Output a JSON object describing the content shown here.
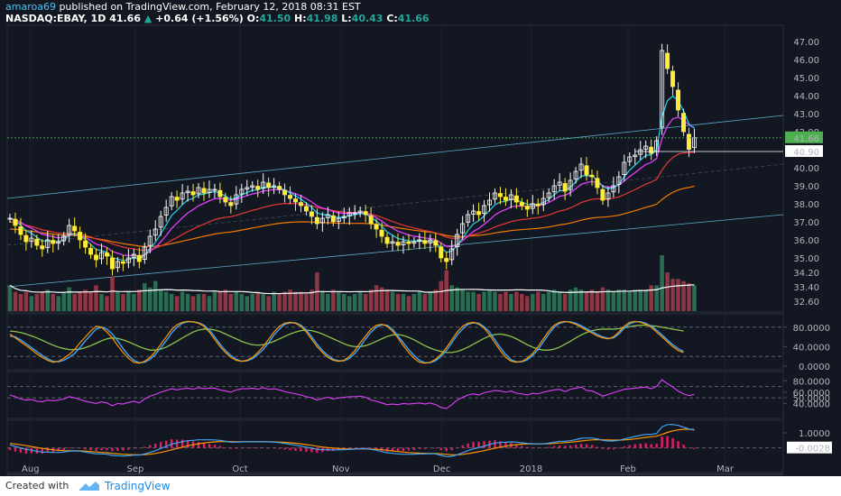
{
  "header": {
    "author": "amaroa69",
    "published_text": "published on TradingView.com, February 12, 2018 08:31 EST",
    "symbol": "NASDAQ:EBAY, 1D",
    "last": "41.66",
    "up_arrow": "▲",
    "change": "+0.64 (+1.56%)",
    "o_label": "O:",
    "o": "41.50",
    "h_label": "H:",
    "h": "41.98",
    "l_label": "L:",
    "l": "40.43",
    "c_label": "C:",
    "c": "41.66"
  },
  "footer": {
    "created_with": "Created with",
    "brand": "TradingView"
  },
  "colors": {
    "bg": "#131722",
    "up": "#26a69a",
    "down": "#ef5350",
    "candle_up": "#ffffff",
    "candle_down": "#ffeb3b",
    "ema_fast": "#26c6da",
    "ema_mid": "#e040fb",
    "ema_slow": "#e53935",
    "sma_long": "#f57c00",
    "volume_ma": "#ffffff",
    "stoch_k": "#ff9800",
    "stoch_d": "#42a5f5",
    "stoch_slow": "#8bc34a",
    "rsi": "#e040fb",
    "macd": "#42a5f5",
    "signal": "#ff9800",
    "hist": "#e91e63",
    "channel": "#5fa8c8",
    "price_tag": "#4caf50"
  },
  "chart_data": [
    {
      "type": "candlestick",
      "y_ticks": [
        "47.00",
        "46.00",
        "45.00",
        "44.00",
        "43.00",
        "42.00",
        "41.66",
        "40.90",
        "40.00",
        "39.00",
        "38.00",
        "37.00",
        "36.00",
        "35.00",
        "34.20",
        "33.40",
        "32.60"
      ],
      "ylim": [
        32.2,
        47.6
      ],
      "x_ticks": [
        "Aug",
        "Sep",
        "Oct",
        "Nov",
        "Dec",
        "2018",
        "Feb",
        "Mar"
      ],
      "last_price_label": "41.66",
      "marked_level": "40.90",
      "closes": [
        37.2,
        36.8,
        36.3,
        35.9,
        36.1,
        35.7,
        35.5,
        36.0,
        35.8,
        35.9,
        36.2,
        36.8,
        36.5,
        36.0,
        35.6,
        35.2,
        34.9,
        35.3,
        35.1,
        34.4,
        34.8,
        34.7,
        35.0,
        35.2,
        34.8,
        35.6,
        36.2,
        36.6,
        37.3,
        37.8,
        38.4,
        38.2,
        38.6,
        38.7,
        38.5,
        38.9,
        38.6,
        38.8,
        38.8,
        38.4,
        38.1,
        37.9,
        38.5,
        38.8,
        38.9,
        39.0,
        38.8,
        39.2,
        38.9,
        39.0,
        38.8,
        38.5,
        38.3,
        38.1,
        37.9,
        37.6,
        37.3,
        36.9,
        37.2,
        37.4,
        37.0,
        37.2,
        37.3,
        37.5,
        37.5,
        37.6,
        37.4,
        36.9,
        36.6,
        36.2,
        35.8,
        35.9,
        35.7,
        35.9,
        35.8,
        35.9,
        36.0,
        35.8,
        36.0,
        35.7,
        35.0,
        34.8,
        35.5,
        36.3,
        36.9,
        37.4,
        37.6,
        37.4,
        37.9,
        38.2,
        38.6,
        38.4,
        38.2,
        38.5,
        38.1,
        37.9,
        37.7,
        38.0,
        37.9,
        38.3,
        38.6,
        39.0,
        39.2,
        38.7,
        39.3,
        39.8,
        40.2,
        39.6,
        39.5,
        38.9,
        38.2,
        38.6,
        39.0,
        39.5,
        40.3,
        40.6,
        40.7,
        41.0,
        41.2,
        40.8,
        41.5,
        46.5,
        45.5,
        44.5,
        43.2,
        42.0,
        41.02,
        41.66
      ],
      "volumes": [
        1.2,
        0.9,
        0.8,
        0.9,
        0.7,
        0.8,
        0.9,
        1.0,
        0.8,
        0.7,
        0.9,
        1.1,
        0.8,
        0.9,
        1.0,
        0.9,
        1.2,
        0.8,
        0.7,
        1.6,
        0.9,
        0.8,
        0.9,
        0.8,
        1.0,
        1.3,
        1.1,
        1.4,
        1.0,
        0.9,
        0.8,
        0.7,
        0.9,
        0.8,
        0.7,
        0.8,
        0.8,
        0.7,
        0.9,
        0.9,
        1.0,
        0.8,
        0.9,
        0.8,
        0.7,
        0.8,
        0.9,
        0.8,
        0.7,
        0.9,
        0.8,
        0.9,
        1.0,
        0.9,
        0.9,
        0.8,
        1.0,
        1.8,
        0.9,
        0.8,
        1.0,
        0.9,
        0.8,
        0.7,
        0.8,
        0.9,
        0.8,
        1.0,
        1.2,
        1.1,
        1.0,
        0.9,
        0.8,
        0.8,
        0.7,
        0.8,
        0.9,
        0.8,
        0.9,
        1.0,
        1.4,
        1.9,
        1.2,
        1.1,
        1.0,
        0.9,
        0.9,
        0.8,
        0.9,
        1.0,
        0.9,
        0.8,
        0.9,
        0.8,
        0.9,
        0.8,
        0.7,
        0.8,
        0.9,
        0.8,
        0.9,
        1.0,
        0.9,
        0.8,
        1.0,
        1.1,
        1.0,
        0.9,
        1.0,
        0.9,
        1.1,
        1.0,
        0.9,
        1.0,
        1.0,
        0.9,
        1.0,
        1.0,
        1.0,
        1.2,
        1.2,
        2.6,
        1.8,
        1.5,
        1.5,
        1.4,
        1.3,
        1.2
      ]
    },
    {
      "type": "line",
      "name": "Stochastic",
      "y_ticks": [
        "80.0000",
        "40.0000",
        "0.0000"
      ],
      "ylim": [
        0,
        100
      ],
      "levels": [
        80,
        20
      ],
      "k_values": [
        66,
        58,
        50,
        42,
        34,
        25,
        18,
        12,
        8,
        10,
        16,
        24,
        34,
        48,
        60,
        72,
        82,
        80,
        70,
        58,
        42,
        28,
        16,
        8,
        6,
        10,
        18,
        30,
        45,
        60,
        75,
        85,
        90,
        92,
        91,
        88,
        82,
        70,
        55,
        40,
        28,
        18,
        12,
        10,
        12,
        18,
        28,
        40,
        55,
        70,
        82,
        88,
        90,
        88,
        82,
        70,
        55,
        40,
        28,
        18,
        12,
        10,
        12,
        20,
        32,
        48,
        62,
        76,
        84,
        86,
        82,
        72,
        58,
        42,
        28,
        16,
        8,
        6,
        8,
        14,
        24,
        38,
        54,
        70,
        82,
        88,
        90,
        86,
        78,
        64,
        48,
        32,
        18,
        10,
        8,
        10,
        16,
        26,
        40,
        56,
        72,
        84,
        90,
        92,
        90,
        86,
        80,
        74,
        68,
        62,
        58,
        56,
        60,
        70,
        82,
        90,
        92,
        90,
        86,
        80,
        70,
        60,
        50,
        40,
        32,
        28
      ],
      "d_values": [
        62,
        60,
        54,
        46,
        38,
        30,
        22,
        15,
        10,
        9,
        12,
        18,
        26,
        38,
        52,
        64,
        76,
        80,
        76,
        66,
        52,
        36,
        22,
        12,
        7,
        8,
        14,
        24,
        38,
        52,
        68,
        80,
        88,
        91,
        91,
        89,
        84,
        74,
        60,
        45,
        32,
        22,
        14,
        10,
        11,
        15,
        24,
        34,
        48,
        64,
        76,
        86,
        89,
        89,
        84,
        74,
        60,
        45,
        32,
        22,
        14,
        11,
        11,
        16,
        26,
        40,
        56,
        70,
        80,
        85,
        84,
        76,
        62,
        48,
        34,
        22,
        12,
        7,
        7,
        11,
        20,
        32,
        48,
        64,
        76,
        86,
        89,
        88,
        81,
        70,
        54,
        38,
        24,
        13,
        9,
        9,
        13,
        22,
        34,
        50,
        66,
        80,
        88,
        91,
        91,
        88,
        83,
        77,
        71,
        65,
        60,
        57,
        58,
        66,
        78,
        87,
        91,
        91,
        88,
        82,
        74,
        64,
        54,
        44,
        36,
        30
      ],
      "slow_values": [
        72,
        71,
        69,
        66,
        62,
        58,
        53,
        48,
        43,
        39,
        36,
        34,
        34,
        35,
        38,
        42,
        47,
        52,
        56,
        58,
        57,
        54,
        50,
        45,
        40,
        36,
        33,
        33,
        35,
        39,
        45,
        51,
        58,
        64,
        70,
        74,
        76,
        76,
        74,
        71,
        66,
        61,
        56,
        51,
        47,
        44,
        43,
        44,
        47,
        51,
        56,
        61,
        66,
        70,
        73,
        74,
        73,
        70,
        66,
        61,
        56,
        51,
        46,
        42,
        40,
        40,
        42,
        46,
        51,
        56,
        61,
        64,
        65,
        63,
        59,
        54,
        48,
        42,
        37,
        33,
        30,
        28,
        28,
        30,
        34,
        39,
        45,
        51,
        57,
        62,
        65,
        66,
        64,
        61,
        56,
        50,
        44,
        39,
        35,
        33,
        33,
        35,
        39,
        45,
        51,
        58,
        64,
        69,
        73,
        75,
        76,
        76,
        76,
        77,
        79,
        81,
        83,
        84,
        84,
        83,
        82,
        80,
        78,
        76,
        74,
        72
      ]
    },
    {
      "type": "line",
      "name": "RSI",
      "y_ticks": [
        "80.0000",
        "60.0000",
        "50.0000",
        "40.0000"
      ],
      "ylim": [
        20,
        90
      ],
      "levels": [
        70,
        50
      ],
      "values": [
        55,
        52,
        48,
        46,
        47,
        44,
        43,
        46,
        45,
        46,
        48,
        52,
        50,
        47,
        44,
        42,
        40,
        43,
        41,
        36,
        40,
        39,
        42,
        44,
        41,
        48,
        53,
        56,
        60,
        63,
        66,
        64,
        66,
        67,
        65,
        68,
        66,
        67,
        67,
        64,
        62,
        60,
        64,
        66,
        66,
        67,
        65,
        68,
        65,
        66,
        64,
        61,
        59,
        57,
        55,
        52,
        50,
        46,
        49,
        51,
        48,
        50,
        51,
        52,
        52,
        53,
        51,
        46,
        44,
        41,
        38,
        39,
        38,
        40,
        39,
        40,
        41,
        39,
        41,
        38,
        33,
        31,
        38,
        46,
        51,
        55,
        57,
        55,
        59,
        61,
        63,
        62,
        60,
        62,
        58,
        57,
        55,
        58,
        57,
        60,
        62,
        64,
        65,
        61,
        65,
        67,
        69,
        63,
        62,
        58,
        53,
        56,
        59,
        62,
        65,
        66,
        67,
        68,
        69,
        66,
        70,
        82,
        75,
        69,
        62,
        57,
        54,
        56
      ]
    },
    {
      "type": "line",
      "name": "MACD",
      "y_ticks": [
        "1.0000",
        "-0.0028"
      ],
      "ylim": [
        -1.4,
        1.6
      ],
      "macd_values": [
        0.2,
        0.1,
        0.0,
        -0.1,
        -0.15,
        -0.22,
        -0.28,
        -0.28,
        -0.3,
        -0.3,
        -0.28,
        -0.22,
        -0.2,
        -0.22,
        -0.28,
        -0.34,
        -0.4,
        -0.4,
        -0.42,
        -0.5,
        -0.52,
        -0.54,
        -0.52,
        -0.48,
        -0.48,
        -0.4,
        -0.3,
        -0.18,
        -0.04,
        0.1,
        0.25,
        0.33,
        0.42,
        0.48,
        0.5,
        0.54,
        0.54,
        0.54,
        0.53,
        0.5,
        0.44,
        0.38,
        0.38,
        0.4,
        0.41,
        0.42,
        0.41,
        0.42,
        0.4,
        0.38,
        0.35,
        0.3,
        0.24,
        0.18,
        0.12,
        0.05,
        -0.02,
        -0.1,
        -0.12,
        -0.12,
        -0.14,
        -0.13,
        -0.12,
        -0.1,
        -0.08,
        -0.06,
        -0.06,
        -0.1,
        -0.16,
        -0.24,
        -0.32,
        -0.36,
        -0.4,
        -0.42,
        -0.42,
        -0.42,
        -0.4,
        -0.4,
        -0.38,
        -0.4,
        -0.5,
        -0.58,
        -0.56,
        -0.46,
        -0.32,
        -0.18,
        -0.06,
        0.02,
        0.12,
        0.22,
        0.32,
        0.36,
        0.38,
        0.4,
        0.38,
        0.34,
        0.3,
        0.28,
        0.26,
        0.28,
        0.32,
        0.38,
        0.44,
        0.44,
        0.48,
        0.55,
        0.64,
        0.66,
        0.66,
        0.6,
        0.5,
        0.46,
        0.46,
        0.5,
        0.6,
        0.68,
        0.76,
        0.84,
        0.9,
        0.9,
        0.96,
        1.4,
        1.55,
        1.56,
        1.5,
        1.38,
        1.26,
        1.18
      ],
      "signal_values": [
        0.3,
        0.26,
        0.21,
        0.15,
        0.09,
        0.03,
        -0.03,
        -0.08,
        -0.12,
        -0.16,
        -0.18,
        -0.19,
        -0.19,
        -0.2,
        -0.21,
        -0.24,
        -0.27,
        -0.3,
        -0.32,
        -0.36,
        -0.39,
        -0.42,
        -0.44,
        -0.45,
        -0.46,
        -0.45,
        -0.42,
        -0.37,
        -0.3,
        -0.22,
        -0.13,
        -0.04,
        0.05,
        0.14,
        0.21,
        0.28,
        0.33,
        0.37,
        0.4,
        0.42,
        0.43,
        0.42,
        0.41,
        0.41,
        0.41,
        0.41,
        0.41,
        0.41,
        0.41,
        0.4,
        0.39,
        0.37,
        0.34,
        0.31,
        0.27,
        0.22,
        0.17,
        0.11,
        0.06,
        0.02,
        -0.01,
        -0.04,
        -0.06,
        -0.07,
        -0.07,
        -0.07,
        -0.07,
        -0.08,
        -0.09,
        -0.12,
        -0.16,
        -0.2,
        -0.24,
        -0.28,
        -0.31,
        -0.33,
        -0.35,
        -0.36,
        -0.37,
        -0.37,
        -0.4,
        -0.43,
        -0.46,
        -0.46,
        -0.43,
        -0.38,
        -0.32,
        -0.25,
        -0.18,
        -0.1,
        -0.02,
        0.06,
        0.12,
        0.18,
        0.22,
        0.25,
        0.26,
        0.27,
        0.27,
        0.27,
        0.28,
        0.3,
        0.33,
        0.35,
        0.38,
        0.41,
        0.46,
        0.5,
        0.53,
        0.55,
        0.54,
        0.53,
        0.52,
        0.52,
        0.53,
        0.56,
        0.6,
        0.65,
        0.7,
        0.74,
        0.78,
        0.9,
        1.03,
        1.13,
        1.2,
        1.24,
        1.24,
        1.23
      ]
    }
  ]
}
